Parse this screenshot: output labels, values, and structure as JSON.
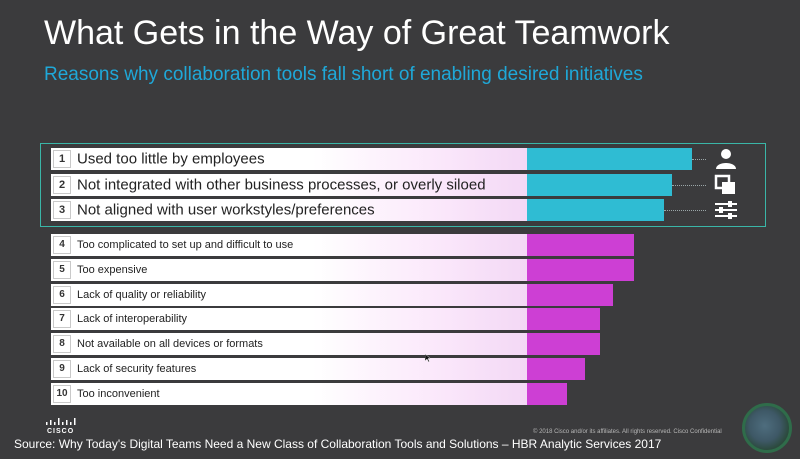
{
  "slide": {
    "title": "What Gets in the Way of Great Teamwork",
    "subtitle": "Reasons why collaboration tools fall short of enabling desired initiatives"
  },
  "colors": {
    "top_bar": "#2fbcd3",
    "other_bar": "#cd3fd4",
    "subtitle": "#1fa8d8",
    "highlight_border": "#3ab6a8"
  },
  "reasons": [
    {
      "rank": "1",
      "label": "Used too little by employees",
      "value": 1.0,
      "icon": "person-icon"
    },
    {
      "rank": "2",
      "label": "Not integrated with other business processes, or overly siloed",
      "value": 0.88,
      "icon": "layers-icon"
    },
    {
      "rank": "3",
      "label": "Not aligned with user workstyles/preferences",
      "value": 0.83,
      "icon": "sliders-icon"
    },
    {
      "rank": "4",
      "label": "Too complicated to set up and difficult to use",
      "value": 0.65
    },
    {
      "rank": "5",
      "label": "Too expensive",
      "value": 0.65
    },
    {
      "rank": "6",
      "label": "Lack of quality or reliability",
      "value": 0.52
    },
    {
      "rank": "7",
      "label": "Lack of interoperability",
      "value": 0.44
    },
    {
      "rank": "8",
      "label": "Not available on all devices or formats",
      "value": 0.44
    },
    {
      "rank": "9",
      "label": "Lack of security features",
      "value": 0.35
    },
    {
      "rank": "10",
      "label": "Too inconvenient",
      "value": 0.24
    }
  ],
  "footer": {
    "logo_text": "CISCO",
    "copyright": "© 2018  Cisco and/or its affiliates. All rights reserved.   Cisco Confidential",
    "source": "Source: Why Today's Digital Teams Need a New Class of Collaboration Tools and Solutions – HBR Analytic Services 2017"
  }
}
